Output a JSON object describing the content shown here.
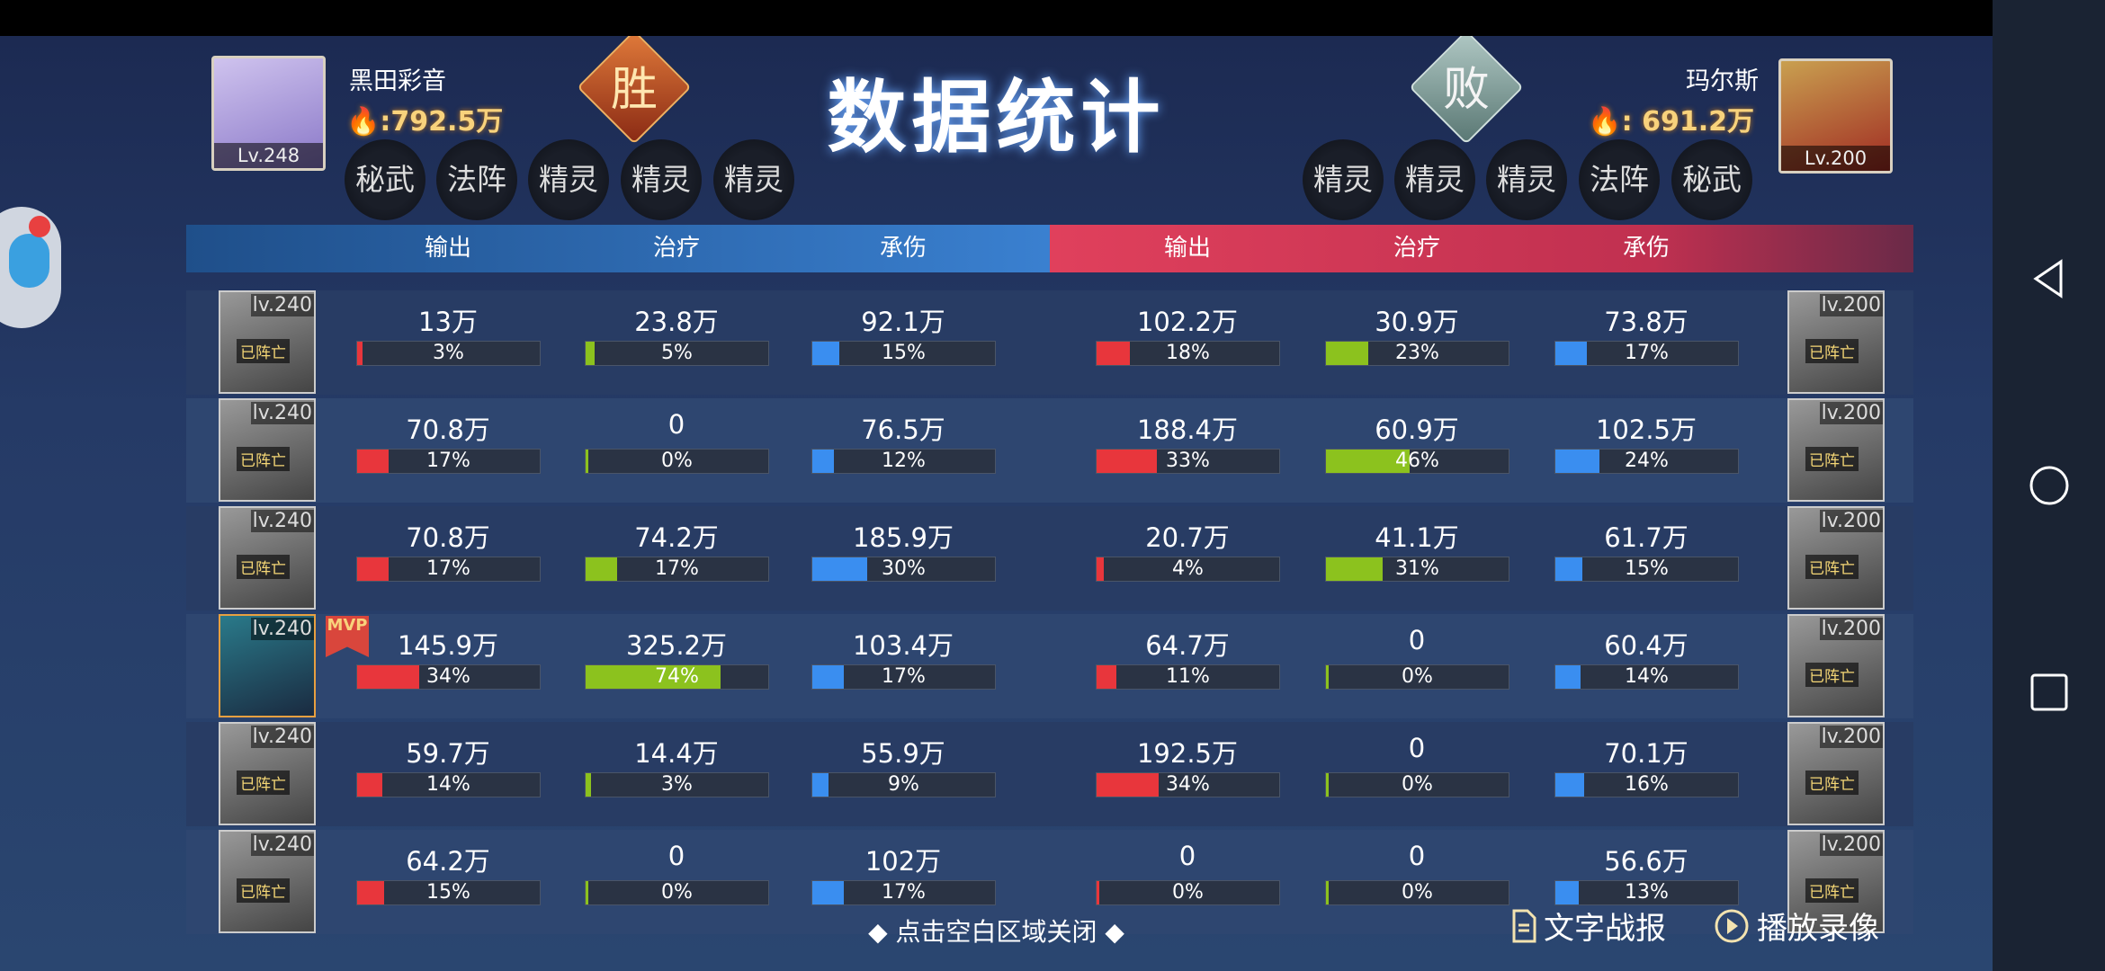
{
  "title": "数据统计",
  "left_player": {
    "name": "黑田彩音",
    "power": ":792.5万",
    "level": "Lv.248",
    "result": "胜",
    "slots": [
      "秘武",
      "法阵",
      "精灵",
      "精灵",
      "精灵"
    ]
  },
  "right_player": {
    "name": "玛尔斯",
    "power": ": 691.2万",
    "level": "Lv.200",
    "result": "败",
    "slots": [
      "精灵",
      "精灵",
      "精灵",
      "法阵",
      "秘武"
    ]
  },
  "columns": [
    "输出",
    "治疗",
    "承伤"
  ],
  "dead_label": "已阵亡",
  "mvp_label": "MVP",
  "colors": {
    "damage": "#e8363c",
    "heal": "#8cc21e",
    "tank": "#3a8ef0",
    "left_header": "#2f6eb0",
    "right_header": "#d03c5a"
  },
  "rows": [
    {
      "left": {
        "level": "lv.240",
        "dead": true,
        "mvp": false,
        "stats": [
          [
            "13万",
            3
          ],
          [
            "23.8万",
            5
          ],
          [
            "92.1万",
            15
          ]
        ]
      },
      "right": {
        "level": "lv.200",
        "dead": true,
        "stats": [
          [
            "102.2万",
            18
          ],
          [
            "30.9万",
            23
          ],
          [
            "73.8万",
            17
          ]
        ]
      }
    },
    {
      "left": {
        "level": "lv.240",
        "dead": true,
        "mvp": false,
        "stats": [
          [
            "70.8万",
            17
          ],
          [
            "0",
            0
          ],
          [
            "76.5万",
            12
          ]
        ]
      },
      "right": {
        "level": "lv.200",
        "dead": true,
        "stats": [
          [
            "188.4万",
            33
          ],
          [
            "60.9万",
            46
          ],
          [
            "102.5万",
            24
          ]
        ]
      }
    },
    {
      "left": {
        "level": "lv.240",
        "dead": true,
        "mvp": false,
        "stats": [
          [
            "70.8万",
            17
          ],
          [
            "74.2万",
            17
          ],
          [
            "185.9万",
            30
          ]
        ]
      },
      "right": {
        "level": "lv.200",
        "dead": true,
        "stats": [
          [
            "20.7万",
            4
          ],
          [
            "41.1万",
            31
          ],
          [
            "61.7万",
            15
          ]
        ]
      }
    },
    {
      "left": {
        "level": "lv.240",
        "dead": false,
        "mvp": true,
        "stats": [
          [
            "145.9万",
            34
          ],
          [
            "325.2万",
            74
          ],
          [
            "103.4万",
            17
          ]
        ]
      },
      "right": {
        "level": "lv.200",
        "dead": true,
        "stats": [
          [
            "64.7万",
            11
          ],
          [
            "0",
            0
          ],
          [
            "60.4万",
            14
          ]
        ]
      }
    },
    {
      "left": {
        "level": "lv.240",
        "dead": true,
        "mvp": false,
        "stats": [
          [
            "59.7万",
            14
          ],
          [
            "14.4万",
            3
          ],
          [
            "55.9万",
            9
          ]
        ]
      },
      "right": {
        "level": "lv.200",
        "dead": true,
        "stats": [
          [
            "192.5万",
            34
          ],
          [
            "0",
            0
          ],
          [
            "70.1万",
            16
          ]
        ]
      }
    },
    {
      "left": {
        "level": "lv.240",
        "dead": true,
        "mvp": false,
        "stats": [
          [
            "64.2万",
            15
          ],
          [
            "0",
            0
          ],
          [
            "102万",
            17
          ]
        ]
      },
      "right": {
        "level": "lv.200",
        "dead": true,
        "stats": [
          [
            "0",
            0
          ],
          [
            "0",
            0
          ],
          [
            "56.6万",
            13
          ]
        ]
      }
    }
  ],
  "footer": {
    "close_hint": "◆ 点击空白区域关闭 ◆",
    "text_report": "文字战报",
    "replay": "播放录像"
  },
  "icons": {
    "text_report": "document-icon",
    "replay": "play-circle-icon",
    "assistant": "monkey-assistant-icon",
    "nav": [
      "back-triangle-icon",
      "home-circle-icon",
      "recents-square-icon"
    ]
  }
}
